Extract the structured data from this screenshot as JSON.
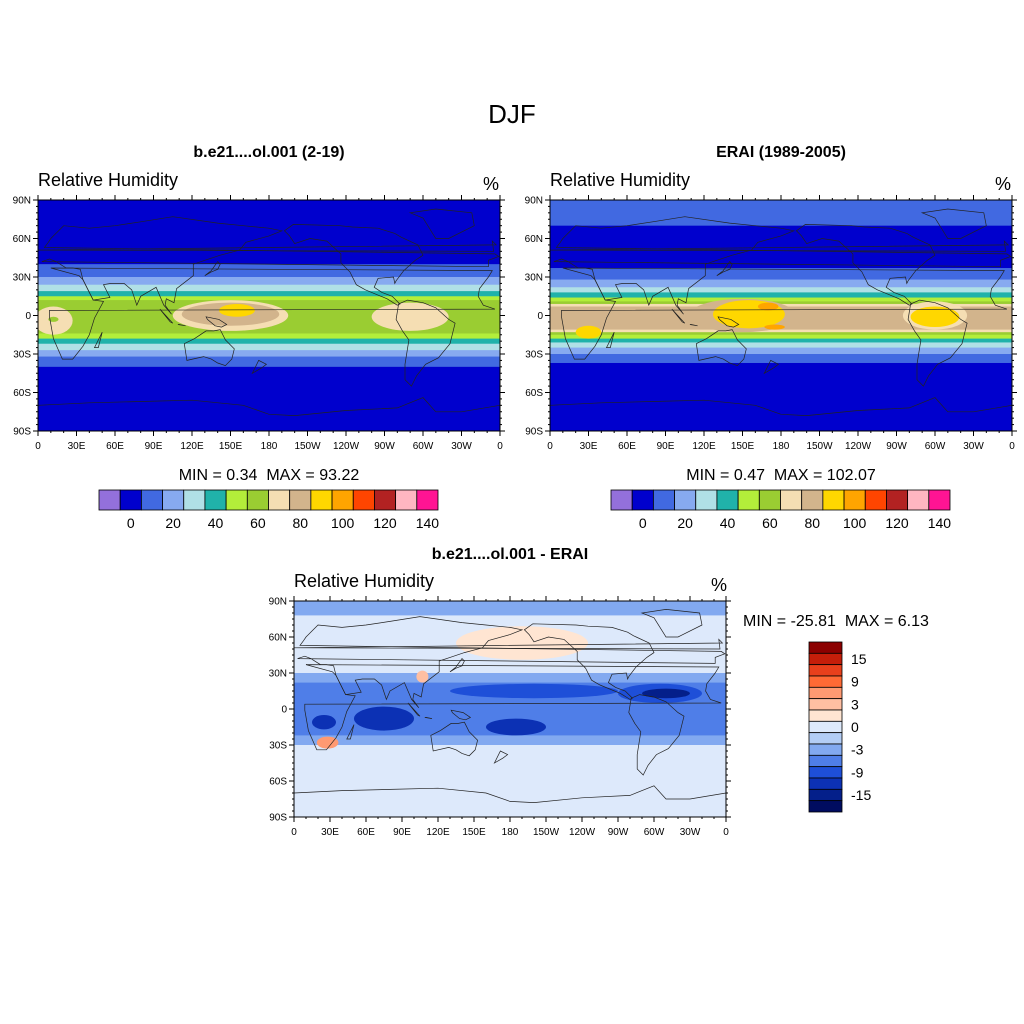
{
  "figure_title": "DJF",
  "panels": {
    "model": {
      "title": "b.e21....ol.001 (2-19)",
      "variable": "Relative Humidity",
      "units": "%",
      "min_label": "MIN =",
      "min_value": "0.34",
      "max_label": "MAX =",
      "max_value": "93.22"
    },
    "obs": {
      "title": "ERAI (1989-2005)",
      "variable": "Relative Humidity",
      "units": "%",
      "min_label": "MIN =",
      "min_value": "0.47",
      "max_label": "MAX =",
      "max_value": "102.07"
    },
    "diff": {
      "title": "b.e21....ol.001 - ERAI",
      "variable": "Relative Humidity",
      "units": "%",
      "min_label": "MIN =",
      "min_value": "-25.81",
      "max_label": "MAX =",
      "max_value": "6.13"
    }
  },
  "axes": {
    "lat_ticks": [
      "90N",
      "60N",
      "30N",
      "0",
      "30S",
      "60S",
      "90S"
    ],
    "lon_ticks": [
      "0",
      "30E",
      "60E",
      "90E",
      "120E",
      "150E",
      "180",
      "150W",
      "120W",
      "90W",
      "60W",
      "30W",
      "0"
    ]
  },
  "abs_colorbar": {
    "colors": [
      "#9370db",
      "#0000cd",
      "#4169e1",
      "#87aaf0",
      "#b0e0e6",
      "#20b2aa",
      "#b3ee3a",
      "#9acd32",
      "#f5deb3",
      "#d2b48c",
      "#ffd700",
      "#ffa500",
      "#ff4500",
      "#b22222",
      "#ffb6c1",
      "#ff1493"
    ],
    "labels": [
      "0",
      "20",
      "40",
      "60",
      "80",
      "100",
      "120",
      "140"
    ]
  },
  "diff_colorbar": {
    "colors": [
      "#8b0000",
      "#c41e0a",
      "#e8401c",
      "#ff6a35",
      "#ff9a72",
      "#ffbfa2",
      "#ffe5d2",
      "#dde9fb",
      "#b3cdf5",
      "#82a9f0",
      "#4f7ee8",
      "#1e4fd8",
      "#0c31b4",
      "#041f8a",
      "#000c60"
    ],
    "labels": [
      "15",
      "9",
      "3",
      "0",
      "-3",
      "-9",
      "-15"
    ]
  },
  "map_fields": {
    "model": {
      "background": "#0000cd",
      "bands": [
        {
          "lat_top": 40,
          "lat_bottom": -40,
          "color": "#4169e1"
        },
        {
          "lat_top": 30,
          "lat_bottom": -32,
          "color": "#87aaf0"
        },
        {
          "lat_top": 24,
          "lat_bottom": -27,
          "color": "#b0e0e6"
        },
        {
          "lat_top": 19,
          "lat_bottom": -22,
          "color": "#20b2aa"
        },
        {
          "lat_top": 15,
          "lat_bottom": -18,
          "color": "#b3ee3a"
        },
        {
          "lat_top": 12,
          "lat_bottom": -14,
          "color": "#9acd32"
        }
      ],
      "blobs": [
        {
          "lon": 12,
          "lat": -4,
          "rx": 15,
          "ry": 11,
          "color": "#f5deb3"
        },
        {
          "lon": 150,
          "lat": 0,
          "rx": 45,
          "ry": 12,
          "color": "#f5deb3"
        },
        {
          "lon": 150,
          "lat": 1,
          "rx": 38,
          "ry": 9,
          "color": "#d2b48c"
        },
        {
          "lon": 155,
          "lat": 4,
          "rx": 14,
          "ry": 5,
          "color": "#ffd700"
        },
        {
          "lon": 290,
          "lat": -1,
          "rx": 30,
          "ry": 11,
          "color": "#f5deb3"
        },
        {
          "lon": 12,
          "lat": -3,
          "rx": 4,
          "ry": 2,
          "color": "#9acd32"
        }
      ]
    },
    "obs": {
      "background": "#0000cd",
      "bands": [
        {
          "lat_top": 92,
          "lat_bottom": 70,
          "color": "#4169e1"
        },
        {
          "lat_top": 37,
          "lat_bottom": -37,
          "color": "#4169e1"
        },
        {
          "lat_top": 28,
          "lat_bottom": -30,
          "color": "#87aaf0"
        },
        {
          "lat_top": 22,
          "lat_bottom": -25,
          "color": "#b0e0e6"
        },
        {
          "lat_top": 18,
          "lat_bottom": -21,
          "color": "#20b2aa"
        },
        {
          "lat_top": 14,
          "lat_bottom": -18,
          "color": "#b3ee3a"
        },
        {
          "lat_top": 11,
          "lat_bottom": -15,
          "color": "#9acd32"
        },
        {
          "lat_top": 9,
          "lat_bottom": -13,
          "color": "#f5deb3"
        },
        {
          "lat_top": 7,
          "lat_bottom": -11,
          "color": "#d2b48c"
        }
      ],
      "blobs": [
        {
          "lon": 150,
          "lat": 0,
          "rx": 42,
          "ry": 13,
          "color": "#d2b48c"
        },
        {
          "lon": 155,
          "lat": 1,
          "rx": 28,
          "ry": 11,
          "color": "#ffd700"
        },
        {
          "lon": 170,
          "lat": 7,
          "rx": 8,
          "ry": 3,
          "color": "#ffa500"
        },
        {
          "lon": 175,
          "lat": -9,
          "rx": 8,
          "ry": 2,
          "color": "#ffa500"
        },
        {
          "lon": 300,
          "lat": 0,
          "rx": 25,
          "ry": 11,
          "color": "#f5deb3"
        },
        {
          "lon": 300,
          "lat": -1,
          "rx": 19,
          "ry": 8,
          "color": "#ffd700"
        },
        {
          "lon": 30,
          "lat": -13,
          "rx": 10,
          "ry": 5,
          "color": "#ffd700"
        }
      ]
    },
    "diff": {
      "background": "#dde9fb",
      "bands": [
        {
          "lat_top": 92,
          "lat_bottom": 78,
          "color": "#82a9f0"
        },
        {
          "lat_top": 30,
          "lat_bottom": -30,
          "color": "#82a9f0"
        },
        {
          "lat_top": 22,
          "lat_bottom": -22,
          "color": "#4f7ee8"
        }
      ],
      "blobs": [
        {
          "lon": 190,
          "lat": 55,
          "rx": 55,
          "ry": 14,
          "color": "#ffe5d2"
        },
        {
          "lon": 200,
          "lat": 15,
          "rx": 70,
          "ry": 6,
          "color": "#1e4fd8"
        },
        {
          "lon": 305,
          "lat": 13,
          "rx": 35,
          "ry": 8,
          "color": "#1e4fd8"
        },
        {
          "lon": 310,
          "lat": 13,
          "rx": 20,
          "ry": 4,
          "color": "#041f8a"
        },
        {
          "lon": 75,
          "lat": -8,
          "rx": 25,
          "ry": 10,
          "color": "#0c31b4"
        },
        {
          "lon": 185,
          "lat": -15,
          "rx": 25,
          "ry": 7,
          "color": "#0c31b4"
        },
        {
          "lon": 25,
          "lat": -11,
          "rx": 10,
          "ry": 6,
          "color": "#0c31b4"
        },
        {
          "lon": 28,
          "lat": -28,
          "rx": 9,
          "ry": 5,
          "color": "#ff9a72"
        },
        {
          "lon": 107,
          "lat": 27,
          "rx": 5,
          "ry": 5,
          "color": "#ffbfa2"
        }
      ]
    }
  }
}
